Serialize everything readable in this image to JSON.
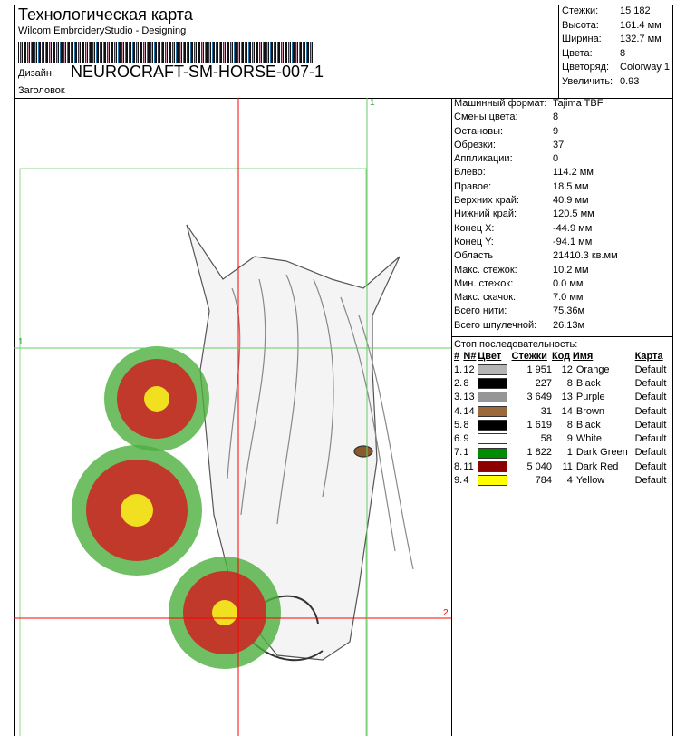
{
  "header": {
    "title": "Технологическая карта",
    "subtitle": "Wilcom EmbroideryStudio - Designing",
    "design_label": "Дизайн:",
    "design_name": "NEUROCRAFT-SM-HORSE-007-1",
    "heading_label": "Заголовок"
  },
  "summary": [
    {
      "label": "Стежки:",
      "value": "15 182"
    },
    {
      "label": "Высота:",
      "value": "161.4 мм"
    },
    {
      "label": "Ширина:",
      "value": "132.7 мм"
    },
    {
      "label": "Цвета:",
      "value": "8"
    },
    {
      "label": "Цветоряд:",
      "value": "Colorway 1"
    },
    {
      "label": "Увеличить:",
      "value": "0.93"
    }
  ],
  "stats": [
    {
      "label": "Машинный формат:",
      "value": "Tajima TBF"
    },
    {
      "label": "Смены цвета:",
      "value": "8"
    },
    {
      "label": "Остановы:",
      "value": "9"
    },
    {
      "label": "Обрезки:",
      "value": "37"
    },
    {
      "label": "Аппликации:",
      "value": "0"
    },
    {
      "label": "Влево:",
      "value": "114.2 мм"
    },
    {
      "label": "Правое:",
      "value": "18.5 мм"
    },
    {
      "label": "Верхних край:",
      "value": "40.9 мм"
    },
    {
      "label": "Нижний край:",
      "value": "120.5 мм"
    },
    {
      "label": "Конец X:",
      "value": "-44.9 мм"
    },
    {
      "label": "Конец Y:",
      "value": "-94.1 мм"
    },
    {
      "label": "Область",
      "value": "21410.3 кв.мм"
    },
    {
      "label": "Макс. стежок:",
      "value": "10.2 мм"
    },
    {
      "label": "Мин. стежок:",
      "value": "0.0 мм"
    },
    {
      "label": "Макс. скачок:",
      "value": "7.0 мм"
    },
    {
      "label": "Всего нити:",
      "value": "75.36м"
    },
    {
      "label": "Всего шпулечной:",
      "value": "26.13м"
    }
  ],
  "stop_sequence": {
    "title": "Стоп последовательность:",
    "columns": [
      "#",
      "N#",
      "Цвет",
      "Стежки",
      "Код",
      "Имя",
      "Карта"
    ],
    "rows": [
      {
        "num": "1.",
        "n": "12",
        "color": "#b4b4b4",
        "stitches": "1 951",
        "code": "12",
        "name": "Orange",
        "chart": "Default"
      },
      {
        "num": "2.",
        "n": "8",
        "color": "#000000",
        "stitches": "227",
        "code": "8",
        "name": "Black",
        "chart": "Default"
      },
      {
        "num": "3.",
        "n": "13",
        "color": "#969696",
        "stitches": "3 649",
        "code": "13",
        "name": "Purple",
        "chart": "Default"
      },
      {
        "num": "4.",
        "n": "14",
        "color": "#9c6a3a",
        "stitches": "31",
        "code": "14",
        "name": "Brown",
        "chart": "Default"
      },
      {
        "num": "5.",
        "n": "8",
        "color": "#000000",
        "stitches": "1 619",
        "code": "8",
        "name": "Black",
        "chart": "Default"
      },
      {
        "num": "6.",
        "n": "9",
        "color": "#ffffff",
        "stitches": "58",
        "code": "9",
        "name": "White",
        "chart": "Default"
      },
      {
        "num": "7.",
        "n": "1",
        "color": "#008c00",
        "stitches": "1 822",
        "code": "1",
        "name": "Dark Green",
        "chart": "Default"
      },
      {
        "num": "8.",
        "n": "11",
        "color": "#8c0000",
        "stitches": "5 040",
        "code": "11",
        "name": "Dark Red",
        "chart": "Default"
      },
      {
        "num": "9.",
        "n": "4",
        "color": "#ffff00",
        "stitches": "784",
        "code": "4",
        "name": "Yellow",
        "chart": "Default"
      }
    ]
  },
  "guides": {
    "label1": "1",
    "label2": "2",
    "red": "#ff0000",
    "green": "#66cc66"
  }
}
